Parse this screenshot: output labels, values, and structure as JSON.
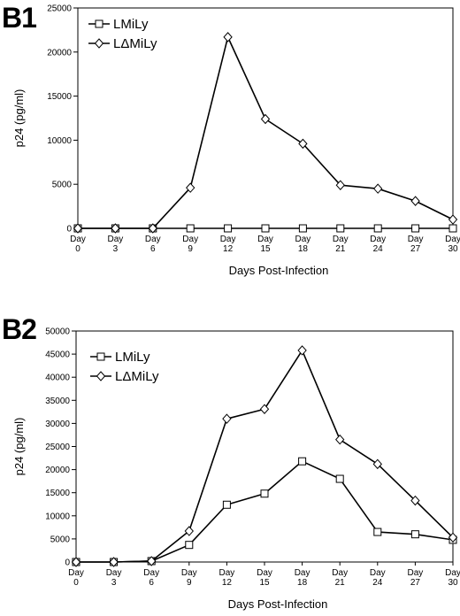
{
  "chart_data": [
    {
      "panel_label": "B1",
      "type": "line",
      "xlabel": "Days  Post-Infection",
      "ylabel": "p24   (pg/ml)",
      "categories": [
        "Day 0",
        "Day 3",
        "Day 6",
        "Day 9",
        "Day 12",
        "Day 15",
        "Day 18",
        "Day 21",
        "Day 24",
        "Day 27",
        "Day 30"
      ],
      "category_lines": [
        [
          "Day",
          "0"
        ],
        [
          "Day",
          "3"
        ],
        [
          "Day",
          "6"
        ],
        [
          "Day",
          "9"
        ],
        [
          "Day",
          "12"
        ],
        [
          "Day",
          "15"
        ],
        [
          "Day",
          "18"
        ],
        [
          "Day",
          "21"
        ],
        [
          "Day",
          "24"
        ],
        [
          "Day",
          "27"
        ],
        [
          "Day",
          "30"
        ]
      ],
      "ylim": [
        0,
        25000
      ],
      "yticks": [
        0,
        5000,
        10000,
        15000,
        20000,
        25000
      ],
      "grid": false,
      "legend_position": "top-left",
      "series": [
        {
          "name": "LMiLy",
          "marker": "square",
          "values": [
            0,
            0,
            0,
            0,
            0,
            0,
            0,
            0,
            0,
            0,
            0
          ]
        },
        {
          "name": "LΔMiLy",
          "marker": "diamond",
          "values": [
            0,
            0,
            0,
            4600,
            21700,
            12400,
            9600,
            4900,
            4500,
            3100,
            1000
          ]
        }
      ]
    },
    {
      "panel_label": "B2",
      "type": "line",
      "xlabel": "Days  Post-Infection",
      "ylabel": "p24   (pg/ml)",
      "categories": [
        "Day 0",
        "Day 3",
        "Day 6",
        "Day 9",
        "Day 12",
        "Day 15",
        "Day 18",
        "Day 21",
        "Day 24",
        "Day 27",
        "Day 30"
      ],
      "category_lines": [
        [
          "Day",
          "0"
        ],
        [
          "Day",
          "3"
        ],
        [
          "Day",
          "6"
        ],
        [
          "Day",
          "9"
        ],
        [
          "Day",
          "12"
        ],
        [
          "Day",
          "15"
        ],
        [
          "Day",
          "18"
        ],
        [
          "Day",
          "21"
        ],
        [
          "Day",
          "24"
        ],
        [
          "Day",
          "27"
        ],
        [
          "Day",
          "30"
        ]
      ],
      "ylim": [
        0,
        50000
      ],
      "yticks": [
        0,
        5000,
        10000,
        15000,
        20000,
        25000,
        30000,
        35000,
        40000,
        45000,
        50000
      ],
      "grid": false,
      "legend_position": "top-left",
      "series": [
        {
          "name": "LMiLy",
          "marker": "square",
          "values": [
            0,
            0,
            200,
            3700,
            12400,
            14800,
            21800,
            18000,
            6500,
            6000,
            4800
          ]
        },
        {
          "name": "LΔMiLy",
          "marker": "diamond",
          "values": [
            0,
            0,
            200,
            6700,
            31000,
            33100,
            45800,
            26500,
            21200,
            13300,
            5300
          ]
        }
      ]
    }
  ]
}
